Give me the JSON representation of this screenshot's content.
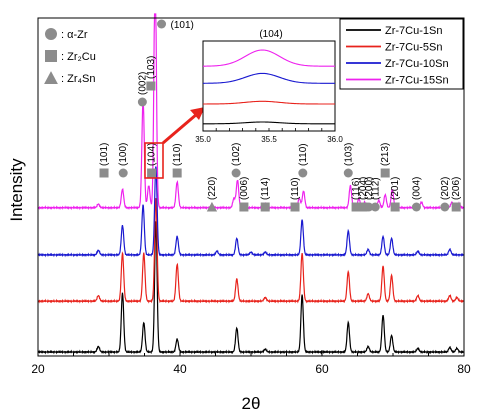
{
  "chart_data": {
    "type": "line",
    "xlabel": "2θ",
    "ylabel": "Intensity",
    "xlim": [
      20,
      80
    ],
    "xticks": [
      20,
      40,
      60,
      80
    ],
    "x_tick_labels": [
      "20",
      "40",
      "60",
      "80"
    ],
    "grid": false,
    "legend_position": "top-right",
    "series": [
      {
        "name": "Zr-7Cu-1Sn",
        "color": "#000000",
        "baseline": 0,
        "noise": 0.04,
        "peaks": [
          [
            28.5,
            0.3
          ],
          [
            31.9,
            3.2
          ],
          [
            34.9,
            1.6
          ],
          [
            36.6,
            7.1
          ],
          [
            39.6,
            0.7
          ],
          [
            48.0,
            1.3
          ],
          [
            52.0,
            0.15
          ],
          [
            57.2,
            3.1
          ],
          [
            63.7,
            1.6
          ],
          [
            66.5,
            0.3
          ],
          [
            68.6,
            2.0
          ],
          [
            69.8,
            0.9
          ],
          [
            73.5,
            0.2
          ],
          [
            78.0,
            0.25
          ],
          [
            79.0,
            0.2
          ]
        ]
      },
      {
        "name": "Zr-7Cu-5Sn",
        "color": "#e8231c",
        "baseline": 2.75,
        "noise": 0.04,
        "peaks": [
          [
            28.5,
            0.3
          ],
          [
            31.9,
            2.6
          ],
          [
            34.9,
            2.6
          ],
          [
            36.6,
            5.6
          ],
          [
            39.6,
            2.0
          ],
          [
            48.0,
            1.2
          ],
          [
            52.0,
            0.2
          ],
          [
            57.2,
            2.6
          ],
          [
            63.7,
            1.6
          ],
          [
            66.5,
            0.4
          ],
          [
            68.6,
            1.9
          ],
          [
            69.8,
            1.4
          ],
          [
            73.5,
            0.3
          ],
          [
            78.0,
            0.3
          ],
          [
            79.0,
            0.2
          ]
        ]
      },
      {
        "name": "Zr-7Cu-10Sn",
        "color": "#1a1ad0",
        "baseline": 5.25,
        "noise": 0.04,
        "peaks": [
          [
            28.5,
            0.25
          ],
          [
            31.9,
            1.6
          ],
          [
            34.8,
            2.7
          ],
          [
            36.6,
            4.8
          ],
          [
            39.6,
            1.0
          ],
          [
            45.2,
            0.2
          ],
          [
            48.0,
            0.9
          ],
          [
            50.0,
            0.15
          ],
          [
            52.0,
            0.15
          ],
          [
            57.2,
            1.9
          ],
          [
            63.7,
            1.3
          ],
          [
            66.5,
            0.3
          ],
          [
            68.6,
            1.0
          ],
          [
            69.8,
            0.9
          ],
          [
            73.5,
            0.2
          ],
          [
            78.0,
            0.3
          ]
        ]
      },
      {
        "name": "Zr-7Cu-15Sn",
        "color": "#ee22ee",
        "baseline": 7.8,
        "noise": 0.04,
        "peaks": [
          [
            28.5,
            0.2
          ],
          [
            31.9,
            1.0
          ],
          [
            34.8,
            5.8
          ],
          [
            35.6,
            1.2
          ],
          [
            36.5,
            13.0
          ],
          [
            39.6,
            1.4
          ],
          [
            44.5,
            0.15
          ],
          [
            47.6,
            0.5
          ],
          [
            48.1,
            1.5
          ],
          [
            52.0,
            0.25
          ],
          [
            56.8,
            0.5
          ],
          [
            57.4,
            0.9
          ],
          [
            64.0,
            1.2
          ],
          [
            65.2,
            0.5
          ],
          [
            66.0,
            0.3
          ],
          [
            68.0,
            0.4
          ],
          [
            68.9,
            0.7
          ],
          [
            69.9,
            1.0
          ],
          [
            74.0,
            0.3
          ],
          [
            78.3,
            0.3
          ],
          [
            79.3,
            0.2
          ]
        ]
      }
    ],
    "phase_legend": [
      {
        "marker": "circle",
        "label": "α-Zr"
      },
      {
        "marker": "square",
        "label": "Zr₂Cu"
      },
      {
        "marker": "triangle",
        "label": "Zr₄Sn"
      }
    ],
    "annotations": [
      {
        "x": 29.3,
        "marker": "square",
        "text": "(101)",
        "level": "mid"
      },
      {
        "x": 32.0,
        "marker": "circle",
        "text": "(100)",
        "level": "mid"
      },
      {
        "x": 34.7,
        "marker": "circle",
        "text": "(002)",
        "level": "high"
      },
      {
        "x": 35.9,
        "marker": "square",
        "text": "(103)",
        "level": "high2"
      },
      {
        "x": 36.0,
        "marker": "square",
        "text": "(104)",
        "level": "mid"
      },
      {
        "x": 37.4,
        "marker": "circle",
        "text": "(101)",
        "level": "top"
      },
      {
        "x": 39.6,
        "marker": "square",
        "text": "(110)",
        "level": "mid"
      },
      {
        "x": 44.5,
        "marker": "triangle",
        "text": "(220)",
        "level": "low"
      },
      {
        "x": 47.9,
        "marker": "circle",
        "text": "(102)",
        "level": "mid"
      },
      {
        "x": 49.0,
        "marker": "square",
        "text": "(006)",
        "level": "low"
      },
      {
        "x": 52.0,
        "marker": "square",
        "text": "(114)",
        "level": "low"
      },
      {
        "x": 56.2,
        "marker": "square",
        "text": "(110)",
        "level": "low"
      },
      {
        "x": 57.3,
        "marker": "circle",
        "text": "(110)",
        "level": "mid"
      },
      {
        "x": 63.7,
        "marker": "circle",
        "text": "(103)",
        "level": "mid"
      },
      {
        "x": 64.8,
        "marker": "square",
        "text": "(116)",
        "level": "low"
      },
      {
        "x": 65.8,
        "marker": "square",
        "text": "(204)",
        "level": "low"
      },
      {
        "x": 66.6,
        "marker": "circle",
        "text": "(200)",
        "level": "low"
      },
      {
        "x": 67.5,
        "marker": "circle",
        "text": "(112)",
        "level": "low"
      },
      {
        "x": 68.9,
        "marker": "square",
        "text": "(213)",
        "level": "mid"
      },
      {
        "x": 70.3,
        "marker": "square",
        "text": "(201)",
        "level": "low"
      },
      {
        "x": 73.3,
        "marker": "circle",
        "text": "(004)",
        "level": "low"
      },
      {
        "x": 77.3,
        "marker": "circle",
        "text": "(202)",
        "level": "low"
      },
      {
        "x": 78.9,
        "marker": "square",
        "text": "(206)",
        "level": "low"
      }
    ],
    "inset": {
      "title": "(104)",
      "xlim": [
        35.0,
        36.0
      ],
      "xticks": [
        35.0,
        35.5,
        36.0
      ],
      "x_tick_labels": [
        "35.0",
        "35.5",
        "36.0"
      ],
      "series": [
        {
          "color": "#000000",
          "level": 0.08,
          "bump": 0.02
        },
        {
          "color": "#e8231c",
          "level": 0.3,
          "bump": 0.03
        },
        {
          "color": "#1a1ad0",
          "level": 0.53,
          "bump": 0.11
        },
        {
          "color": "#ee22ee",
          "level": 0.72,
          "bump": 0.18
        }
      ]
    }
  }
}
